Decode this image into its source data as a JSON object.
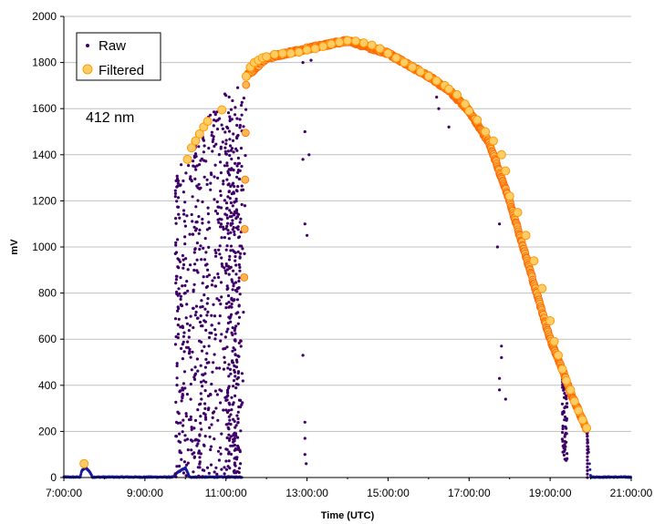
{
  "chart_data": {
    "type": "scatter",
    "title": "",
    "annotation": "412 nm",
    "xlabel": "Time (UTC)",
    "ylabel": "mV",
    "x_ticks": [
      "7:00:00",
      "9:00:00",
      "11:00:00",
      "13:00:00",
      "15:00:00",
      "17:00:00",
      "19:00:00",
      "21:00:00"
    ],
    "y_ticks": [
      "0",
      "200",
      "400",
      "600",
      "800",
      "1000",
      "1200",
      "1400",
      "1600",
      "1800",
      "2000"
    ],
    "xlim_hours": [
      7,
      21
    ],
    "ylim": [
      0,
      2000
    ],
    "grid": "horizontal",
    "legend_position": "top-left",
    "colors": {
      "raw": "#3f0068",
      "filtered_fill": "#ffcc66",
      "filtered_edge": "#ff6600",
      "dense_filtered": "#ff6600",
      "baseline": "#1a1a9e",
      "grid": "#c0c0c0"
    },
    "series": [
      {
        "name": "Raw",
        "marker": "dot"
      },
      {
        "name": "Filtered",
        "marker": "circle"
      }
    ],
    "raw_envelope_hours": [
      [
        7.0,
        0
      ],
      [
        7.4,
        0
      ],
      [
        7.45,
        30
      ],
      [
        7.55,
        40
      ],
      [
        7.65,
        20
      ],
      [
        7.7,
        0
      ],
      [
        9.7,
        0
      ],
      [
        9.8,
        20
      ],
      [
        10.0,
        40
      ],
      [
        10.1,
        0
      ],
      [
        11.4,
        0
      ],
      [
        11.5,
        1740
      ],
      [
        12.0,
        1820
      ],
      [
        13.0,
        1860
      ],
      [
        14.0,
        1895
      ],
      [
        15.0,
        1840
      ],
      [
        16.0,
        1740
      ],
      [
        16.5,
        1680
      ],
      [
        17.0,
        1590
      ],
      [
        17.5,
        1450
      ],
      [
        18.0,
        1200
      ],
      [
        18.5,
        900
      ],
      [
        19.0,
        600
      ],
      [
        19.3,
        470
      ],
      [
        19.5,
        370
      ],
      [
        19.9,
        210
      ],
      [
        20.0,
        0
      ],
      [
        21.0,
        0
      ]
    ],
    "filtered_points_hours": [
      [
        7.5,
        60
      ],
      [
        10.05,
        1380
      ],
      [
        10.15,
        1430
      ],
      [
        10.25,
        1460
      ],
      [
        10.35,
        1490
      ],
      [
        10.45,
        1520
      ],
      [
        10.55,
        1545
      ],
      [
        10.9,
        1595
      ],
      [
        11.5,
        1740
      ],
      [
        11.6,
        1780
      ],
      [
        11.7,
        1800
      ],
      [
        11.8,
        1810
      ],
      [
        11.9,
        1820
      ],
      [
        12.0,
        1825
      ],
      [
        12.2,
        1835
      ],
      [
        12.4,
        1840
      ],
      [
        12.6,
        1840
      ],
      [
        12.8,
        1845
      ],
      [
        13.0,
        1855
      ],
      [
        13.2,
        1860
      ],
      [
        13.4,
        1870
      ],
      [
        13.6,
        1880
      ],
      [
        13.8,
        1888
      ],
      [
        14.0,
        1895
      ],
      [
        14.2,
        1893
      ],
      [
        14.4,
        1885
      ],
      [
        14.6,
        1875
      ],
      [
        14.8,
        1860
      ],
      [
        15.0,
        1840
      ],
      [
        15.2,
        1820
      ],
      [
        15.4,
        1800
      ],
      [
        15.6,
        1780
      ],
      [
        15.8,
        1760
      ],
      [
        16.0,
        1740
      ],
      [
        16.2,
        1720
      ],
      [
        16.4,
        1700
      ],
      [
        16.5,
        1685
      ],
      [
        16.7,
        1660
      ],
      [
        16.9,
        1620
      ],
      [
        17.0,
        1590
      ],
      [
        17.2,
        1550
      ],
      [
        17.4,
        1500
      ],
      [
        17.6,
        1460
      ],
      [
        17.8,
        1400
      ],
      [
        17.9,
        1330
      ],
      [
        18.0,
        1220
      ],
      [
        18.2,
        1150
      ],
      [
        18.4,
        1050
      ],
      [
        18.6,
        940
      ],
      [
        18.8,
        820
      ],
      [
        19.0,
        680
      ],
      [
        19.1,
        590
      ],
      [
        19.2,
        530
      ],
      [
        19.3,
        470
      ],
      [
        19.4,
        420
      ],
      [
        19.5,
        380
      ],
      [
        19.6,
        330
      ],
      [
        19.7,
        290
      ],
      [
        19.8,
        250
      ],
      [
        19.9,
        215
      ]
    ]
  }
}
